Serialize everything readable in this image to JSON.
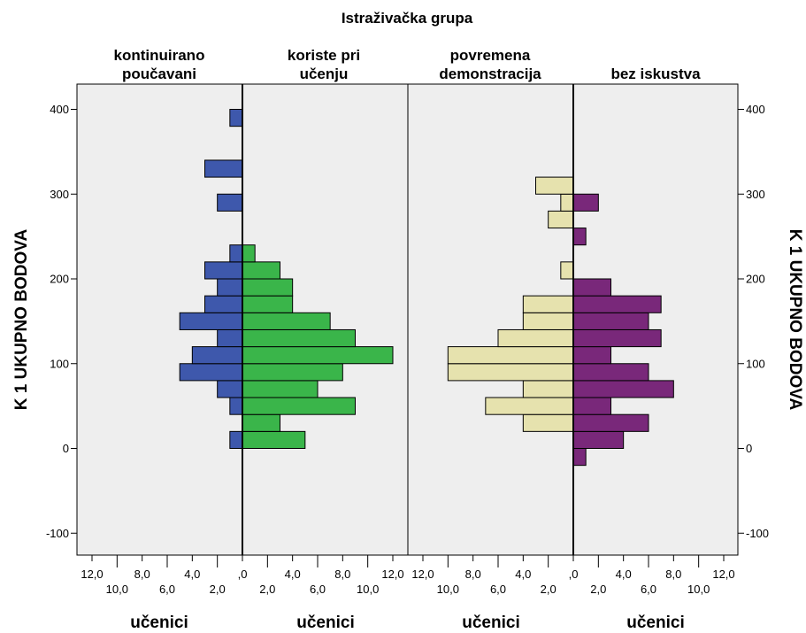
{
  "chart_data": {
    "type": "bar",
    "title": "Istraživačka grupa",
    "ylabel": "K 1 UKUPNO BODOVA",
    "ylim": [
      -130,
      430
    ],
    "yticks": [
      400,
      300,
      200,
      100,
      0,
      -100
    ],
    "ytick_labels": [
      "400",
      "300",
      "200",
      "100",
      "0",
      "-100"
    ],
    "xlim": [
      0,
      13.2
    ],
    "xticks_upper": [
      "12,0",
      "8,0",
      "4,0",
      ",0",
      "4,0",
      "8,0",
      "12,0"
    ],
    "xticks_lower": [
      "10,0",
      "6,0",
      "2,0",
      "2,0",
      "6,0",
      "10,0"
    ],
    "bin_width": 20,
    "panels": [
      {
        "xlabel": "učenici",
        "series": [
          {
            "name": "kontinuirano poučavani",
            "direction": "left",
            "color": "#3e58ac",
            "bins": [
              10,
              50,
              70,
              90,
              110,
              130,
              150,
              170,
              190,
              210,
              230,
              290,
              330,
              390
            ],
            "values": [
              1,
              1,
              2,
              5,
              4,
              2,
              5,
              3,
              2,
              3,
              1,
              2,
              3,
              1
            ]
          },
          {
            "name": "koriste pri učenju",
            "direction": "right",
            "color": "#3ab54a",
            "bins": [
              10,
              30,
              50,
              70,
              90,
              110,
              130,
              150,
              170,
              190,
              210,
              230
            ],
            "values": [
              5,
              3,
              9,
              6,
              8,
              12,
              9,
              7,
              4,
              4,
              3,
              1
            ]
          }
        ]
      },
      {
        "xlabel": "učenici",
        "series": [
          {
            "name": "povremena demonstracija",
            "direction": "left",
            "color": "#e6e2ae",
            "bins": [
              30,
              50,
              70,
              90,
              110,
              130,
              150,
              170,
              210,
              270,
              290,
              310
            ],
            "values": [
              4,
              7,
              4,
              10,
              10,
              6,
              4,
              4,
              1,
              2,
              1,
              3
            ]
          },
          {
            "name": "bez iskustva",
            "direction": "right",
            "color": "#79287a",
            "bins": [
              -10,
              10,
              30,
              50,
              70,
              90,
              110,
              130,
              150,
              170,
              190,
              250,
              290
            ],
            "values": [
              1,
              4,
              6,
              3,
              8,
              6,
              3,
              7,
              6,
              7,
              3,
              1,
              2
            ]
          }
        ]
      }
    ],
    "group_labels": [
      [
        "kontinuirano",
        "poučavani"
      ],
      [
        "koriste pri",
        "učenju"
      ],
      [
        "povremena",
        "demonstracija"
      ],
      [
        "bez iskustva"
      ]
    ],
    "grid": false,
    "legend": "none"
  }
}
